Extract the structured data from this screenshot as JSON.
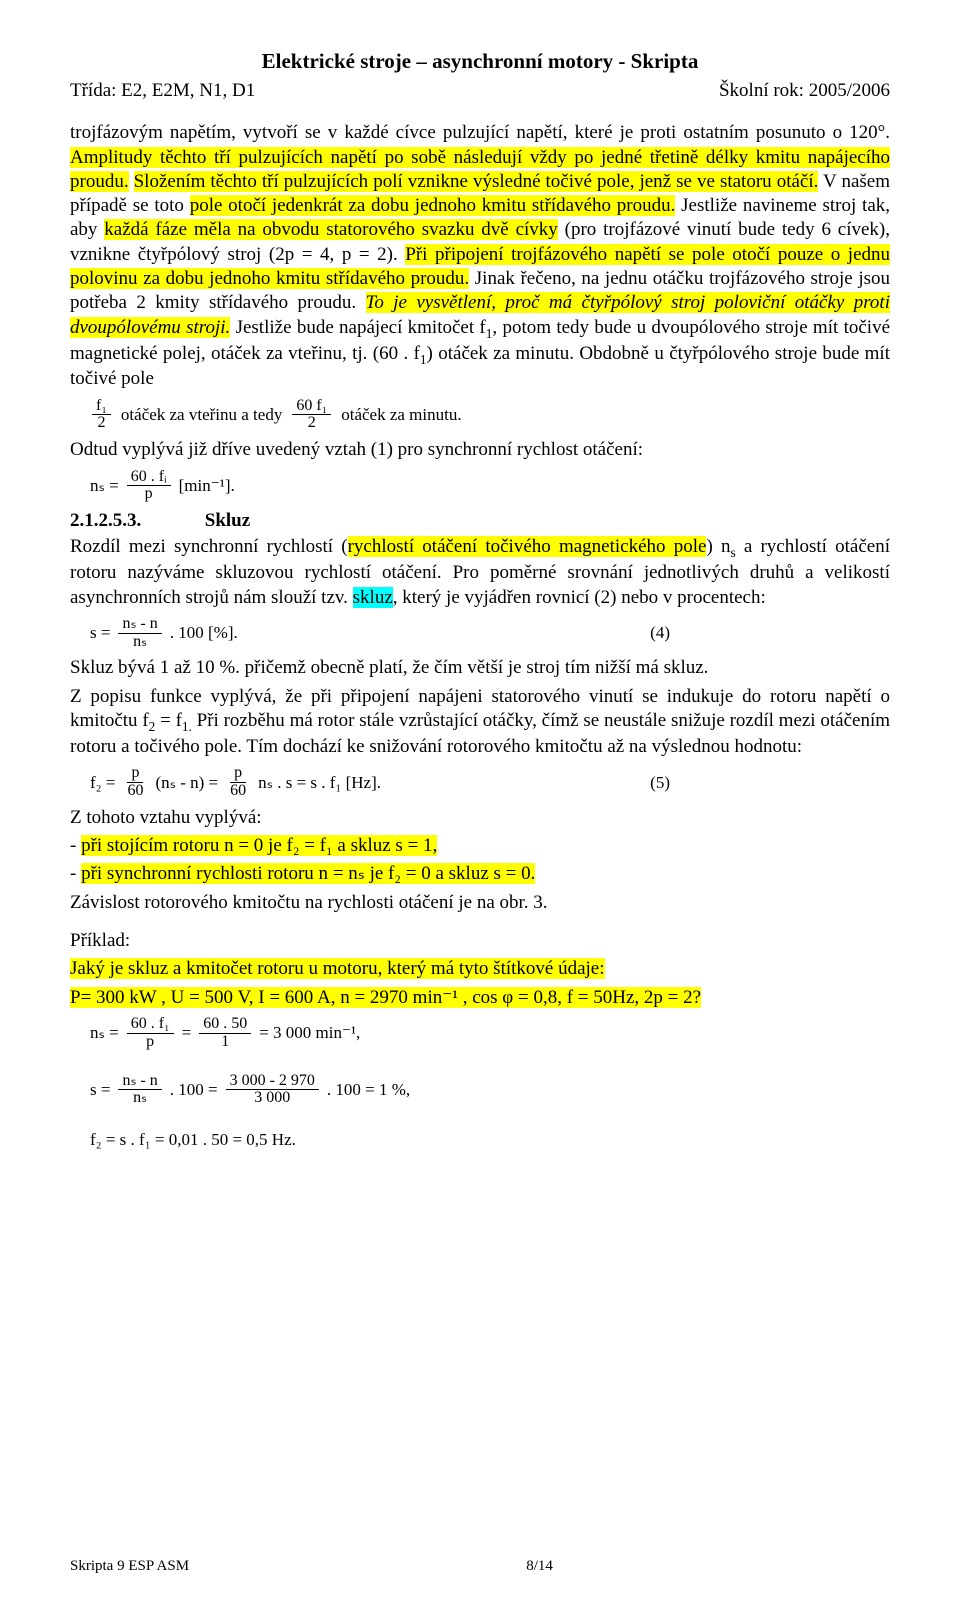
{
  "header": {
    "title": "Elektrické stroje – asynchronní motory - Skripta",
    "left": "Třída: E2, E2M, N1, D1",
    "right": "Školní rok: 2005/2006"
  },
  "p1": {
    "t1": "trojfázovým napětím, vytvoří se v každé cívce pulzující napětí, které je proti ostatním posunuto o 120°. ",
    "h1": "Amplitudy těchto tří pulzujících napětí po sobě následují vždy po jedné třetině délky kmitu napájecího proudu.",
    "t2": " ",
    "h2": "Složením těchto tří pulzujících polí vznikne výsledné točivé pole, jenž se ve statoru otáčí.",
    "t3": " V našem případě se toto ",
    "h3": "pole otočí jedenkrát za dobu jednoho kmitu střídavého proudu.",
    "t4": " Jestliže navineme stroj tak, aby ",
    "h4": "každá fáze měla na obvodu statorového svazku dvě cívky",
    "t5": " (pro trojfázové vinutí bude tedy 6 cívek), vznikne čtyřpólový stroj (2p = 4, p = 2). ",
    "h5": "Při připojení trojfázového napětí se pole otočí pouze o jednu polovinu za dobu jednoho kmitu střídavého proudu.",
    "t6": " Jinak řečeno, na jednu otáčku trojfázového stroje jsou potřeba 2 kmity střídavého proudu. ",
    "i1": "To je vysvětlení, proč má čtyřpólový stroj poloviční otáčky proti dvoupólovému stroji.",
    "t7": " Jestliže bude napájecí kmitočet f",
    "sub1": "1",
    "t8": ", potom tedy bude u dvoupólového stroje mít točivé magnetické polej, otáček za vteřinu, tj. (60 . f",
    "sub2": "1",
    "t9": ") otáček za minutu. Obdobně u čtyřpólového stroje bude mít točivé pole"
  },
  "eq1": {
    "f1n": "f₁",
    "f1d": "2",
    "txt1": "  otáček za vteřinu a tedy  ",
    "f2n": "60 f₁",
    "f2d": "2",
    "txt2": "  otáček za minutu."
  },
  "p2": "Odtud vyplývá již dříve uvedený vztah (1) pro synchronní rychlost otáčení:",
  "eq2": {
    "lhs": "nₛ =",
    "num": "60 . fᵢ",
    "den": "p",
    "rhs": "  [min⁻¹]."
  },
  "sec": {
    "num": "2.1.2.5.3.",
    "title": "Skluz"
  },
  "p3": {
    "t1": "Rozdíl mezi synchronní rychlostí (",
    "h1": "rychlostí otáčení točivého magnetického pole",
    "t2": ") n",
    "sub1": "s",
    "t3": " a rychlostí otáčení rotoru nazýváme skluzovou rychlostí otáčení. Pro poměrné srovnání jednotlivých druhů a velikostí asynchronních strojů nám slouží tzv. ",
    "c1": "skluz",
    "t4": ", který je vyjádřen rovnicí (2) nebo v procentech:"
  },
  "eq3": {
    "lhs": "s = ",
    "num": "nₛ - n",
    "den": "nₛ",
    "rhs": " . 100 [%].",
    "eqnum": "(4)"
  },
  "p4": "Skluz bývá 1 až 10 %. přičemž obecně platí, že čím větší je stroj tím nižší má skluz.",
  "p5": {
    "t1": "Z popisu funkce vyplývá, že při připojení napájeni statorového vinutí se indukuje do rotoru napětí o kmitočtu f",
    "sub1": "2",
    "t2": " = f",
    "sub2": "1.",
    "t3": " Při rozběhu má rotor stále vzrůstající otáčky, čímž se neustále snižuje rozdíl mezi otáčením rotoru a točivého pole. Tím dochází ke snižování rotorového kmitočtu až na výslednou hodnotu:"
  },
  "eq4": {
    "lhs": "f₂ = ",
    "n1": "p",
    "d1": "60",
    "mid1": " (nₛ - n) = ",
    "n2": "p",
    "d2": "60",
    "mid2": " nₛ . s = s . f₁  [Hz].",
    "eqnum": "(5)"
  },
  "p6": "Z tohoto vztahu vyplývá:",
  "p7a_t": "- ",
  "p7a_h": "při stojícím rotoru n = 0 je f₂ = f₁ a skluz s = 1,",
  "p7b_t": "- ",
  "p7b_h": "při synchronní rychlosti rotoru n = nₛ je f₂ = 0 a skluz s = 0.",
  "p8": "Závislost rotorového kmitočtu na rychlosti otáčení je na obr. 3.",
  "p9": "Příklad:",
  "p10h1": "Jaký je skluz a kmitočet rotoru u motoru, který má tyto štítkové údaje:",
  "p10h2": "P= 300 kW , U = 500 V, I = 600 A, n = 2970 min⁻¹ , cos φ = 0,8, f  = 50Hz, 2p = 2?",
  "eq5": {
    "lhs": "nₛ = ",
    "n1": "60 . f₁",
    "d1": "p",
    "eq": " = ",
    "n2": "60 . 50",
    "d2": "1",
    "rhs": " = 3 000 min⁻¹,"
  },
  "eq6": {
    "lhs": "s = ",
    "n1": "nₛ - n",
    "d1": "nₛ",
    "mid": " . 100 = ",
    "n2": "3 000 - 2 970",
    "d2": "3 000",
    "rhs": " . 100 = 1 %,"
  },
  "eq7": "f₂ = s . f₁ = 0,01 . 50 = 0,5 Hz.",
  "footer": {
    "left": "Skripta 9 ESP ASM",
    "center": "8/14"
  }
}
